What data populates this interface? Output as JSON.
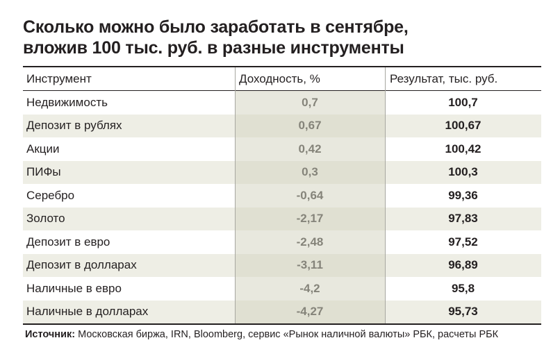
{
  "title": {
    "line1": "Сколько можно было заработать в сентябре,",
    "line2": "вложив 100 тыс. руб. в разные инструменты"
  },
  "table": {
    "headers": [
      "Инструмент",
      "Доходность, %",
      "Результат, тыс. руб."
    ],
    "rows": [
      [
        "Недвижимость",
        "0,7",
        "100,7"
      ],
      [
        "Депозит в рублях",
        "0,67",
        "100,67"
      ],
      [
        "Акции",
        "0,42",
        "100,42"
      ],
      [
        "ПИФы",
        "0,3",
        "100,3"
      ],
      [
        "Серебро",
        "-0,64",
        "99,36"
      ],
      [
        "Золото",
        "-2,17",
        "97,83"
      ],
      [
        "Депозит в евро",
        "-2,48",
        "97,52"
      ],
      [
        "Депозит в долларах",
        "-3,11",
        "96,89"
      ],
      [
        "Наличные в евро",
        "-4,2",
        "95,8"
      ],
      [
        "Наличные в долларах",
        "-4,27",
        "95,73"
      ]
    ]
  },
  "source": {
    "label": "Источник:",
    "text": " Московская биржа, IRN, Bloomberg, сервис «Рынок наличной валюты» РБК, расчеты РБК"
  },
  "colors": {
    "text": "#231f20",
    "row_shade": "#eeeee5",
    "column_shade": "#d6d6c2"
  }
}
